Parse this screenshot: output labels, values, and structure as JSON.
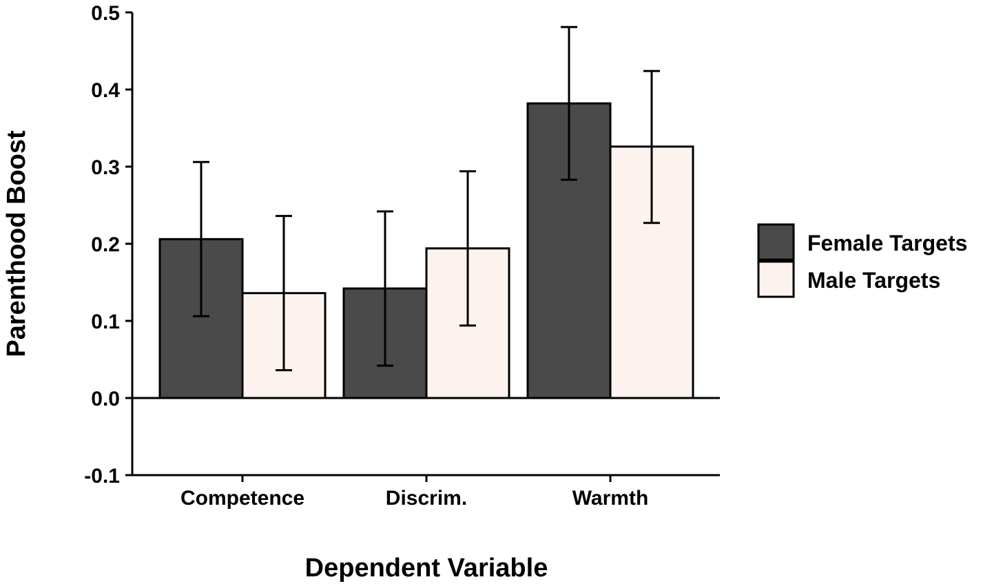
{
  "chart_data": {
    "type": "bar",
    "title": "",
    "xlabel": "Dependent Variable",
    "ylabel": "Parenthood Boost",
    "ylim": [
      -0.1,
      0.5
    ],
    "yticks": [
      "-0.1",
      "0.0",
      "0.1",
      "0.2",
      "0.3",
      "0.4",
      "0.5"
    ],
    "categories": [
      "Competence",
      "Discrim.",
      "Warmth"
    ],
    "legend_position": "right",
    "series": [
      {
        "name": "Female Targets",
        "color": "#4a4a4a",
        "values": [
          0.206,
          0.142,
          0.382
        ],
        "error_low": [
          0.106,
          0.042,
          0.283
        ],
        "error_high": [
          0.306,
          0.242,
          0.481
        ]
      },
      {
        "name": "Male Targets",
        "color": "#fdf3ee",
        "values": [
          0.136,
          0.194,
          0.326
        ],
        "error_low": [
          0.036,
          0.094,
          0.227
        ],
        "error_high": [
          0.236,
          0.294,
          0.424
        ]
      }
    ]
  }
}
